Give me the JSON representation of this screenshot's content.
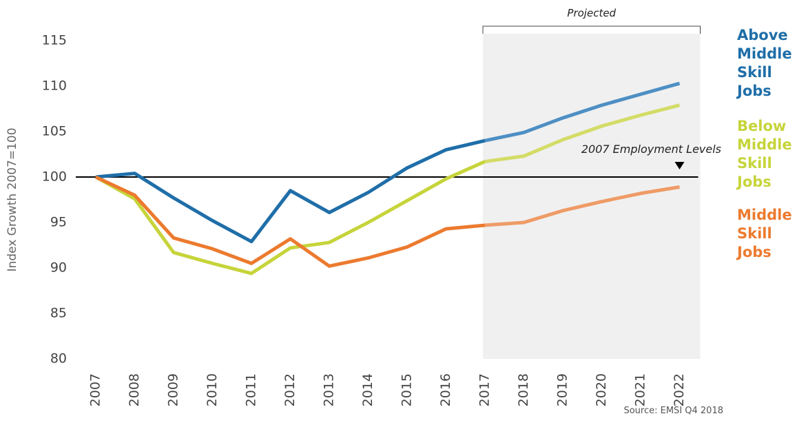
{
  "chart_data": {
    "type": "line",
    "y_label": "Index Growth 2007=100",
    "categories": [
      "2007",
      "2008",
      "2009",
      "2010",
      "2011",
      "2012",
      "2013",
      "2014",
      "2015",
      "2016",
      "2017",
      "2018",
      "2019",
      "2020",
      "2021",
      "2022"
    ],
    "series": [
      {
        "name": "Above Middle Skill Jobs",
        "color": "#1f6ea8",
        "projected_color": "#4d8fc4",
        "values": [
          100,
          100.4,
          97.7,
          95.2,
          92.9,
          98.5,
          96.1,
          98.3,
          101,
          103,
          104,
          104.9,
          106.5,
          107.9,
          109.1,
          110.3
        ]
      },
      {
        "name": "Below Middle Skill Jobs",
        "color": "#c6d43a",
        "projected_color": "#d3dc66",
        "values": [
          100,
          97.6,
          91.7,
          90.5,
          89.4,
          92.2,
          92.8,
          95,
          97.4,
          99.8,
          101.7,
          102.3,
          104.1,
          105.6,
          106.8,
          107.9
        ]
      },
      {
        "name": "Middle Skill Jobs",
        "color": "#ec7a2e",
        "projected_color": "#ef9b66",
        "values": [
          100,
          98,
          93.3,
          92.1,
          90.5,
          93.2,
          90.2,
          91.1,
          92.3,
          94.3,
          94.7,
          95,
          96.3,
          97.3,
          98.2,
          98.9
        ]
      }
    ],
    "ylim": [
      80,
      115
    ],
    "yticks": [
      80,
      85,
      90,
      95,
      100,
      105,
      110,
      115
    ],
    "grid": false,
    "projected": {
      "label": "Projected",
      "range": [
        "2017",
        "2022"
      ]
    },
    "reference_line": {
      "value": 100,
      "label": "2007 Employment Levels"
    },
    "source": "Source: EMSI Q4 2018"
  }
}
